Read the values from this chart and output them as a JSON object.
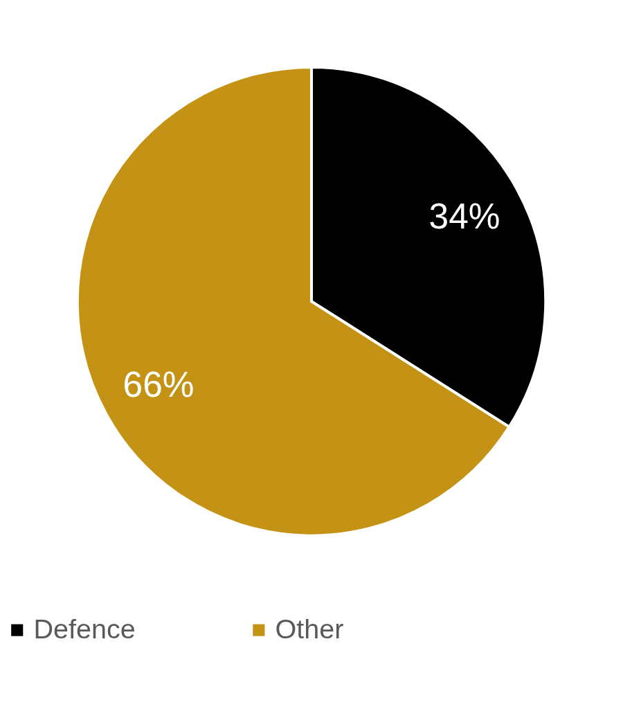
{
  "chart_data": {
    "type": "pie",
    "categories": [
      "Defence",
      "Other"
    ],
    "values": [
      34,
      66
    ],
    "colors": [
      "#000000",
      "#c49214"
    ],
    "value_labels": [
      "34%",
      "66%"
    ],
    "legend": "bottom"
  }
}
